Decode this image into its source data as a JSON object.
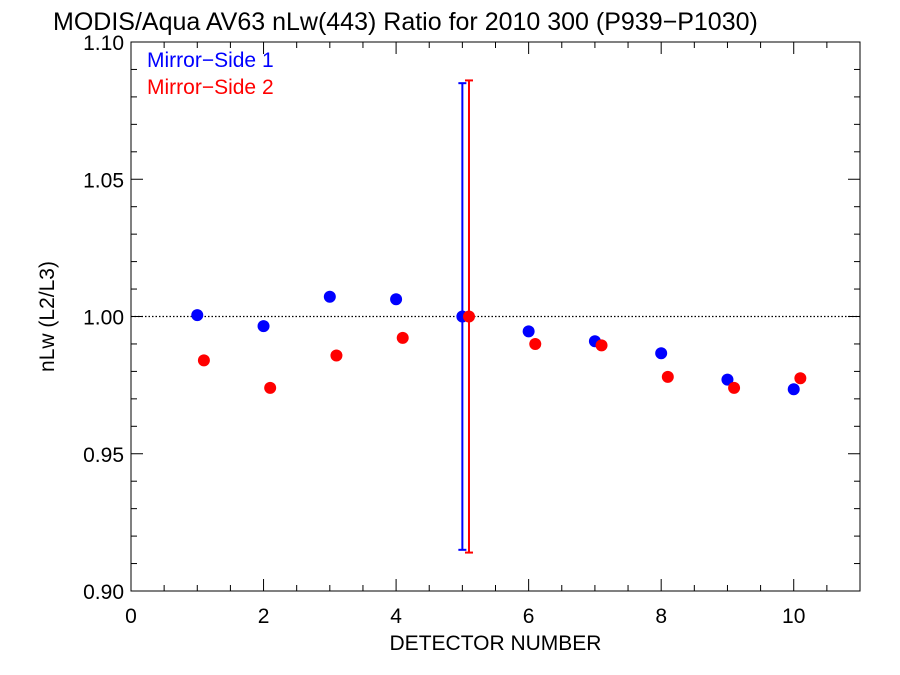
{
  "chart_data": {
    "type": "scatter",
    "title": "MODIS/Aqua AV63 nLw(443) Ratio for 2010 300 (P939−P1030)",
    "xlabel": "DETECTOR NUMBER",
    "ylabel": "nLw (L2/L3)",
    "xlim": [
      0,
      11
    ],
    "ylim": [
      0.9,
      1.1
    ],
    "x_ticks": [
      0,
      2,
      4,
      6,
      8,
      10
    ],
    "x_tick_labels": [
      "0",
      "2",
      "4",
      "6",
      "8",
      "10"
    ],
    "y_ticks": [
      0.9,
      0.95,
      1.0,
      1.05,
      1.1
    ],
    "y_tick_labels": [
      "0.90",
      "0.95",
      "1.00",
      "1.05",
      "1.10"
    ],
    "reference_line": 1.0,
    "legend_position": "top-left",
    "series": [
      {
        "name": "Mirror−Side 1",
        "color": "#0000ff",
        "x": [
          1,
          2,
          3,
          4,
          5,
          6,
          7,
          8,
          9,
          10
        ],
        "y": [
          1.0005,
          0.9965,
          1.0072,
          1.0063,
          1.0,
          0.9946,
          0.991,
          0.9866,
          0.977,
          0.9735
        ],
        "error_bar": {
          "x": 5,
          "low": 0.915,
          "high": 1.085
        }
      },
      {
        "name": "Mirror−Side 2",
        "color": "#ff0000",
        "x": [
          1.1,
          2.1,
          3.1,
          4.1,
          5.1,
          6.1,
          7.1,
          8.1,
          9.1,
          10.1
        ],
        "y": [
          0.984,
          0.974,
          0.9858,
          0.9922,
          1.0,
          0.99,
          0.9895,
          0.978,
          0.974,
          0.9775
        ],
        "error_bar": {
          "x": 5.1,
          "low": 0.914,
          "high": 1.086
        }
      }
    ]
  }
}
